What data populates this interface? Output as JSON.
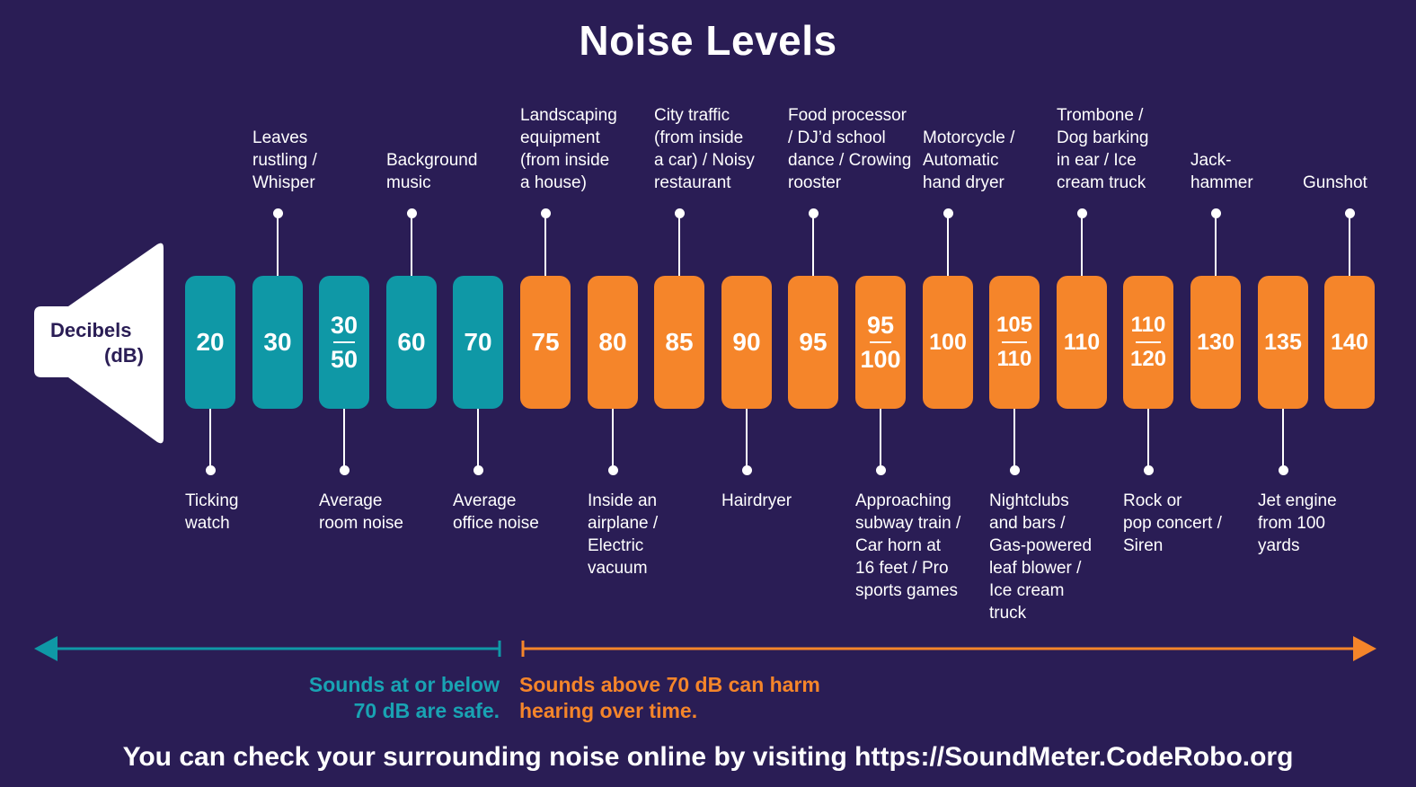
{
  "title": "Noise Levels",
  "speaker_label": [
    "Decibels",
    "(dB)"
  ],
  "colors": {
    "background": "#2a1d55",
    "safe": "#0f98a6",
    "harm": "#f5852a",
    "safe_text": "#19a3b3",
    "text": "#ffffff"
  },
  "levels": [
    {
      "value": "20",
      "zone": "safe",
      "label": "Ticking\nwatch",
      "label_pos": "bottom"
    },
    {
      "value": "30",
      "zone": "safe",
      "label": "Leaves\nrustling /\nWhisper",
      "label_pos": "top"
    },
    {
      "value": [
        "30",
        "50"
      ],
      "zone": "safe",
      "label": "Average\nroom noise",
      "label_pos": "bottom"
    },
    {
      "value": "60",
      "zone": "safe",
      "label": "Background\nmusic",
      "label_pos": "top"
    },
    {
      "value": "70",
      "zone": "safe",
      "label": "Average\noffice noise",
      "label_pos": "bottom"
    },
    {
      "value": "75",
      "zone": "harm",
      "label": "Landscaping\nequipment\n(from inside\na house)",
      "label_pos": "top"
    },
    {
      "value": "80",
      "zone": "harm",
      "label": "Inside an\nairplane /\nElectric\nvacuum",
      "label_pos": "bottom"
    },
    {
      "value": "85",
      "zone": "harm",
      "label": "City traffic\n(from inside\na car) / Noisy\nrestaurant",
      "label_pos": "top"
    },
    {
      "value": "90",
      "zone": "harm",
      "label": "Hairdryer",
      "label_pos": "bottom"
    },
    {
      "value": "95",
      "zone": "harm",
      "label": "Food processor\n/ DJ’d school\ndance / Crowing\nrooster",
      "label_pos": "top"
    },
    {
      "value": [
        "95",
        "100"
      ],
      "zone": "harm",
      "label": "Approaching\nsubway train /\nCar horn at\n16 feet / Pro\nsports games",
      "label_pos": "bottom"
    },
    {
      "value": "100",
      "zone": "harm",
      "label": "Motorcycle /\nAutomatic\nhand dryer",
      "label_pos": "top"
    },
    {
      "value": [
        "105",
        "110"
      ],
      "zone": "harm",
      "label": "Nightclubs\nand bars /\nGas-powered\nleaf blower /\nIce cream\ntruck",
      "label_pos": "bottom"
    },
    {
      "value": "110",
      "zone": "harm",
      "label": "Trombone /\nDog barking\nin ear / Ice\ncream truck",
      "label_pos": "top"
    },
    {
      "value": [
        "110",
        "120"
      ],
      "zone": "harm",
      "label": "Rock or\npop concert /\nSiren",
      "label_pos": "bottom"
    },
    {
      "value": "130",
      "zone": "harm",
      "label": "Jack-\nhammer",
      "label_pos": "top"
    },
    {
      "value": "135",
      "zone": "harm",
      "label": "Jet engine\nfrom 100\nyards",
      "label_pos": "bottom"
    },
    {
      "value": "140",
      "zone": "harm",
      "label": "Gunshot",
      "label_pos": "top"
    }
  ],
  "safe_message": "Sounds at or below\n70 dB are safe.",
  "harm_message": "Sounds above 70 dB can harm\nhearing over time.",
  "footer": "You can check your surrounding noise online by visiting https://SoundMeter.CodeRobo.org"
}
